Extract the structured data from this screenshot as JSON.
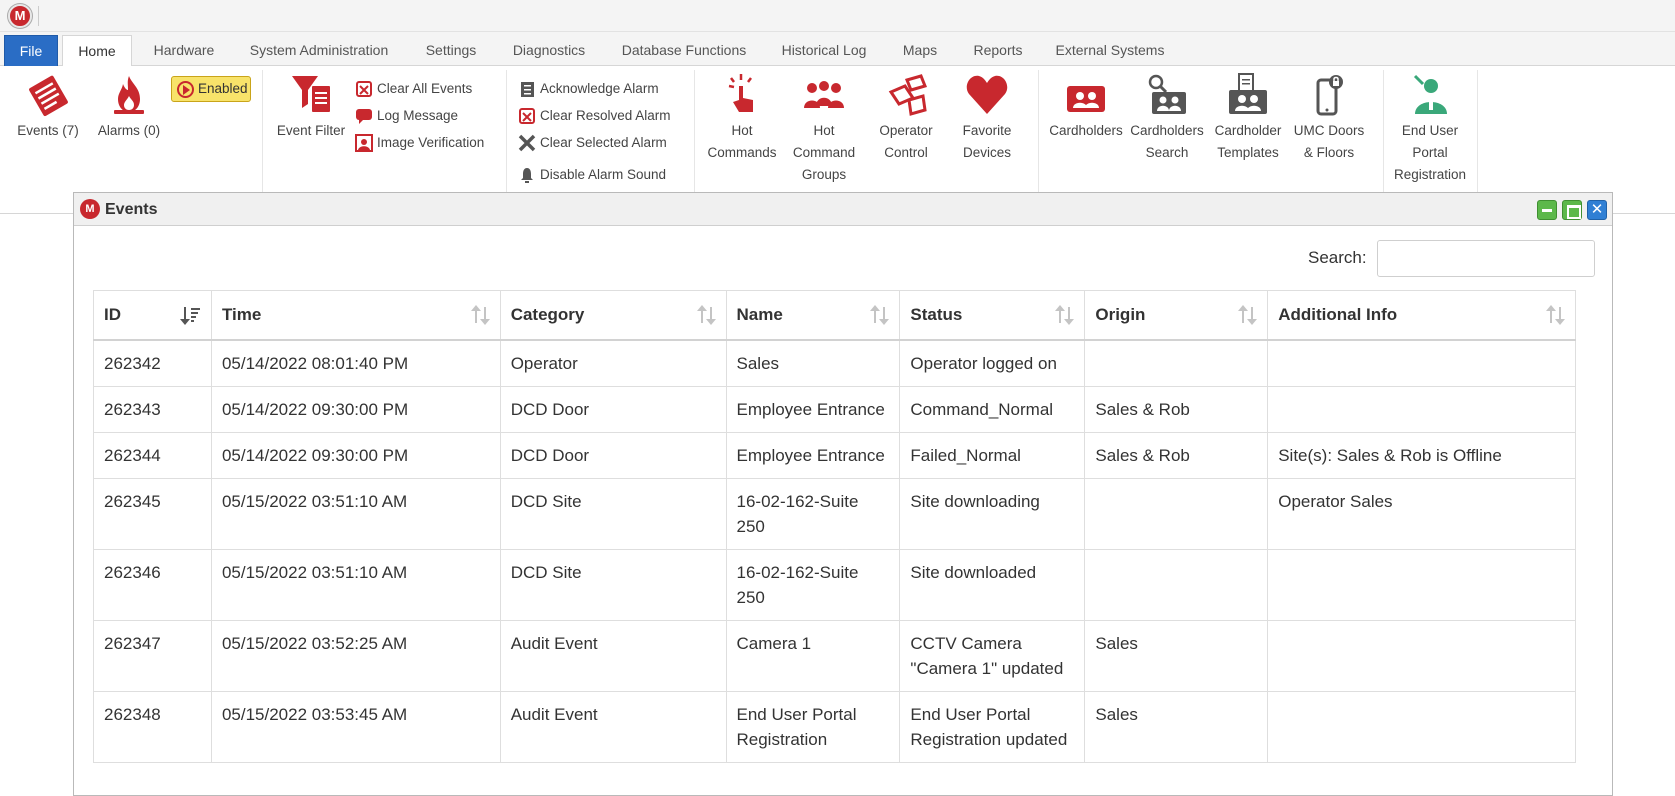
{
  "app": {
    "logo_letter": "M"
  },
  "tabs": [
    {
      "label": "File"
    },
    {
      "label": "Home"
    },
    {
      "label": "Hardware"
    },
    {
      "label": "System Administration"
    },
    {
      "label": "Settings"
    },
    {
      "label": "Diagnostics"
    },
    {
      "label": "Database Functions"
    },
    {
      "label": "Historical Log"
    },
    {
      "label": "Maps"
    },
    {
      "label": "Reports"
    },
    {
      "label": "External Systems"
    }
  ],
  "ribbon": {
    "events": "Events (7)",
    "alarms": "Alarms (0)",
    "enabled": "Enabled",
    "event_filter": "Event Filter",
    "clear_all_events": "Clear All Events",
    "log_message": "Log Message",
    "image_verification": "Image Verification",
    "acknowledge_alarm": "Acknowledge Alarm",
    "clear_resolved_alarm": "Clear Resolved Alarm",
    "clear_selected_alarm": "Clear Selected Alarm",
    "disable_alarm_sound": "Disable Alarm Sound",
    "hot_commands_1": "Hot",
    "hot_commands_2": "Commands",
    "hot_command_groups_1": "Hot",
    "hot_command_groups_2": "Command",
    "hot_command_groups_3": "Groups",
    "operator_control_1": "Operator",
    "operator_control_2": "Control",
    "favorite_devices_1": "Favorite",
    "favorite_devices_2": "Devices",
    "cardholders": "Cardholders",
    "cardholders_search_1": "Cardholders",
    "cardholders_search_2": "Search",
    "cardholder_templates_1": "Cardholder",
    "cardholder_templates_2": "Templates",
    "umc_doors_1": "UMC Doors",
    "umc_doors_2": "& Floors",
    "end_user_portal_1": "End User",
    "end_user_portal_2": "Portal",
    "end_user_portal_3": "Registration"
  },
  "window": {
    "title": "Events",
    "close_glyph": "✕",
    "search_label": "Search:",
    "search_value": ""
  },
  "table": {
    "headers": [
      "ID",
      "Time",
      "Category",
      "Name",
      "Status",
      "Origin",
      "Additional Info"
    ],
    "rows": [
      {
        "id": "262342",
        "time": "05/14/2022 08:01:40 PM",
        "category": "Operator",
        "name_1": "Sales",
        "name_2": "",
        "status_1": "Operator logged on",
        "status_2": "",
        "origin": "",
        "info": ""
      },
      {
        "id": "262343",
        "time": "05/14/2022 09:30:00 PM",
        "category": "DCD Door",
        "name_1": "Employee Entrance",
        "name_2": "",
        "status_1": "Command_Normal",
        "status_2": "",
        "origin": "Sales & Rob",
        "info": ""
      },
      {
        "id": "262344",
        "time": "05/14/2022 09:30:00 PM",
        "category": "DCD Door",
        "name_1": "Employee Entrance",
        "name_2": "",
        "status_1": "Failed_Normal",
        "status_2": "",
        "origin": "Sales & Rob",
        "info": "Site(s): Sales & Rob is Offline"
      },
      {
        "id": "262345",
        "time": "05/15/2022 03:51:10 AM",
        "category": "DCD Site",
        "name_1": "16-02-162-Suite",
        "name_2": "250",
        "status_1": "Site downloading",
        "status_2": "",
        "origin": "",
        "info": "Operator Sales"
      },
      {
        "id": "262346",
        "time": "05/15/2022 03:51:10 AM",
        "category": "DCD Site",
        "name_1": "16-02-162-Suite",
        "name_2": "250",
        "status_1": "Site downloaded",
        "status_2": "",
        "origin": "",
        "info": ""
      },
      {
        "id": "262347",
        "time": "05/15/2022 03:52:25 AM",
        "category": "Audit Event",
        "name_1": "Camera 1",
        "name_2": "",
        "status_1": "CCTV Camera",
        "status_2": "\"Camera 1\" updated",
        "origin": "Sales",
        "info": ""
      },
      {
        "id": "262348",
        "time": "05/15/2022 03:53:45 AM",
        "category": "Audit Event",
        "name_1": "End User Portal",
        "name_2": "Registration",
        "status_1": "End User Portal",
        "status_2": "Registration updated",
        "origin": "Sales",
        "info": ""
      }
    ]
  },
  "icons": {
    "events": "events-icon",
    "alarms": "fire-icon",
    "enabled": "play-icon",
    "event_filter": "filter-icon",
    "clear_all_events": "clear-events-icon",
    "log_message": "message-icon",
    "image_verification": "image-verify-icon",
    "acknowledge_alarm": "acknowledge-icon",
    "clear_resolved_alarm": "clear-resolved-icon",
    "clear_selected_alarm": "x-icon",
    "disable_alarm_sound": "bell-icon",
    "hot_commands": "pointer-icon",
    "hot_command_groups": "group-icon",
    "operator_control": "operator-icon",
    "favorite_devices": "heart-icon",
    "cardholders": "cardholders-icon",
    "cardholders_search": "cardholder-search-icon",
    "cardholder_templates": "template-icon",
    "umc_doors": "phone-lock-icon",
    "end_user_portal": "portal-user-icon"
  },
  "colors": {
    "brand_red": "#c8282e",
    "file_tab": "#2a6dc5",
    "enabled_bg": "#f8e36a",
    "win_green": "#5cb84a",
    "win_blue": "#2f7fd4"
  }
}
